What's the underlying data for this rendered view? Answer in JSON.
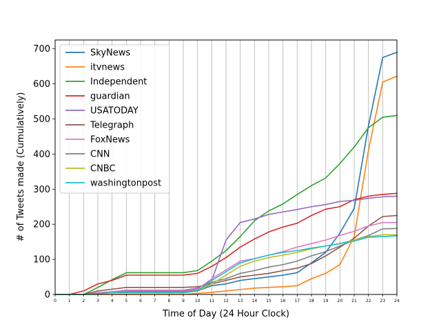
{
  "chart_data": {
    "type": "line",
    "title": "",
    "xlabel": "Time of Day (24 Hour Clock)",
    "ylabel": "# of Tweets made (Cumulatively)",
    "xlim": [
      0,
      24
    ],
    "ylim": [
      0,
      725
    ],
    "x": [
      0,
      1,
      2,
      3,
      4,
      5,
      6,
      7,
      8,
      9,
      10,
      11,
      12,
      13,
      14,
      15,
      16,
      17,
      18,
      19,
      20,
      21,
      22,
      23,
      24
    ],
    "xticks": [
      "0",
      "1",
      "2",
      "3",
      "4",
      "5",
      "6",
      "7",
      "8",
      "9",
      "10",
      "11",
      "12",
      "13",
      "14",
      "15",
      "16",
      "17",
      "18",
      "19",
      "20",
      "21",
      "22",
      "23",
      "24"
    ],
    "yticks": [
      0,
      100,
      200,
      300,
      400,
      500,
      600,
      700
    ],
    "grid": "vertical",
    "legend_position": "top-left",
    "series": [
      {
        "name": "SkyNews",
        "color": "#1f77b4",
        "values": [
          0,
          0,
          0,
          3,
          5,
          5,
          5,
          5,
          5,
          5,
          10,
          25,
          30,
          40,
          45,
          50,
          55,
          62,
          90,
          120,
          175,
          245,
          480,
          675,
          690
        ]
      },
      {
        "name": "itvnews",
        "color": "#ff7f0e",
        "values": [
          0,
          0,
          0,
          0,
          0,
          0,
          0,
          0,
          0,
          0,
          3,
          6,
          10,
          14,
          18,
          20,
          22,
          25,
          45,
          60,
          85,
          165,
          410,
          605,
          622
        ]
      },
      {
        "name": "Independent",
        "color": "#2ca02c",
        "values": [
          0,
          0,
          0,
          20,
          42,
          62,
          62,
          62,
          62,
          62,
          68,
          95,
          125,
          165,
          210,
          238,
          258,
          285,
          310,
          332,
          373,
          420,
          475,
          505,
          510
        ]
      },
      {
        "name": "guardian",
        "color": "#d62728",
        "values": [
          0,
          0,
          10,
          30,
          40,
          55,
          55,
          55,
          55,
          55,
          60,
          80,
          105,
          135,
          158,
          178,
          192,
          203,
          225,
          243,
          250,
          270,
          280,
          285,
          288
        ]
      },
      {
        "name": "USATODAY",
        "color": "#9467bd",
        "values": [
          0,
          0,
          0,
          5,
          8,
          12,
          12,
          12,
          12,
          12,
          18,
          40,
          155,
          205,
          215,
          228,
          235,
          242,
          250,
          256,
          265,
          268,
          274,
          278,
          280
        ]
      },
      {
        "name": "Telegraph",
        "color": "#8c564b",
        "values": [
          0,
          0,
          0,
          10,
          15,
          20,
          20,
          20,
          20,
          20,
          22,
          30,
          40,
          50,
          55,
          60,
          68,
          75,
          88,
          110,
          135,
          160,
          195,
          222,
          225
        ]
      },
      {
        "name": "FoxNews",
        "color": "#e377c2",
        "values": [
          0,
          0,
          0,
          5,
          8,
          10,
          10,
          10,
          10,
          10,
          15,
          45,
          70,
          95,
          102,
          112,
          122,
          135,
          145,
          155,
          168,
          180,
          195,
          205,
          205
        ]
      },
      {
        "name": "CNN",
        "color": "#7f7f7f",
        "values": [
          0,
          0,
          0,
          3,
          5,
          8,
          8,
          8,
          8,
          8,
          12,
          35,
          45,
          60,
          68,
          78,
          85,
          95,
          110,
          122,
          138,
          155,
          168,
          187,
          188
        ]
      },
      {
        "name": "CNBC",
        "color": "#bcbd22",
        "values": [
          0,
          0,
          0,
          2,
          5,
          5,
          5,
          5,
          5,
          5,
          10,
          30,
          55,
          80,
          95,
          105,
          112,
          120,
          130,
          138,
          145,
          155,
          165,
          170,
          170
        ]
      },
      {
        "name": "washingtonpost",
        "color": "#17becf",
        "values": [
          0,
          0,
          0,
          2,
          5,
          5,
          5,
          5,
          5,
          5,
          10,
          40,
          65,
          90,
          102,
          112,
          120,
          125,
          132,
          138,
          145,
          152,
          163,
          165,
          167
        ]
      }
    ]
  }
}
